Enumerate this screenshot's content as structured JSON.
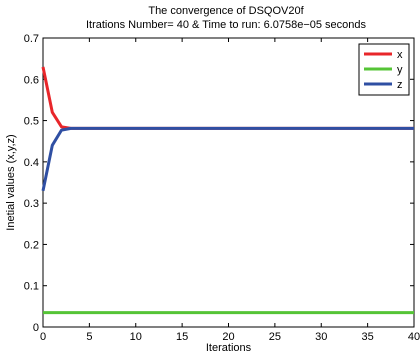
{
  "chart_data": {
    "type": "line",
    "title": "The convergence of DSQOV20f",
    "subtitle": "Itrations Number= 40  &  Time to run: 6.0758e−05 seconds",
    "xlabel": "Iterations",
    "ylabel": "Inetial values (x,y,z)",
    "xlim": [
      0,
      40
    ],
    "ylim": [
      0,
      0.7
    ],
    "xticks": [
      0,
      5,
      10,
      15,
      20,
      25,
      30,
      35,
      40
    ],
    "yticks": [
      0,
      0.1,
      0.2,
      0.3,
      0.4,
      0.5,
      0.6,
      0.7
    ],
    "xtick_labels": [
      "0",
      "5",
      "10",
      "15",
      "20",
      "25",
      "30",
      "35",
      "40"
    ],
    "ytick_labels": [
      "0",
      "0.1",
      "0.2",
      "0.3",
      "0.4",
      "0.5",
      "0.6",
      "0.7"
    ],
    "grid": false,
    "legend_position": "top-right",
    "series": [
      {
        "name": "x",
        "color": "#e8262a",
        "x": [
          0,
          1,
          2,
          3,
          4,
          40
        ],
        "y": [
          0.63,
          0.52,
          0.485,
          0.481,
          0.481,
          0.481
        ]
      },
      {
        "name": "y",
        "color": "#55c436",
        "x": [
          0,
          40
        ],
        "y": [
          0.035,
          0.035
        ]
      },
      {
        "name": "z",
        "color": "#2f4fa3",
        "x": [
          0,
          1,
          2,
          3,
          4,
          40
        ],
        "y": [
          0.33,
          0.44,
          0.477,
          0.481,
          0.481,
          0.481
        ]
      }
    ]
  }
}
